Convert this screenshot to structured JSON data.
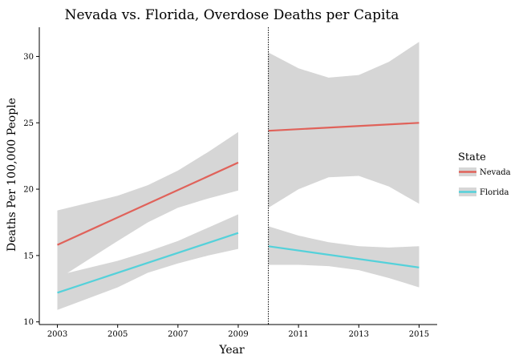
{
  "chart_data": {
    "type": "line",
    "title": "Nevada vs. Florida, Overdose Deaths per Capita",
    "xlabel": "Year",
    "ylabel": "Deaths Per 100,000 People",
    "xlim": [
      2002.4,
      2015.6
    ],
    "ylim": [
      9.8,
      32.2
    ],
    "x_ticks": [
      2003,
      2005,
      2007,
      2009,
      2011,
      2013,
      2015
    ],
    "y_ticks": [
      10,
      15,
      20,
      25,
      30
    ],
    "grid": false,
    "cutoff_line": {
      "x": 2010,
      "style": "dotted"
    },
    "legend": {
      "title": "State",
      "placement": "right",
      "entries": [
        {
          "name": "Nevada",
          "color": "#e0625a"
        },
        {
          "name": "Florida",
          "color": "#54d1da"
        }
      ]
    },
    "band_color": "#d6d6d6",
    "series": [
      {
        "name": "Nevada",
        "color": "#e0625a",
        "segment": "pre",
        "line": [
          [
            2003,
            15.8
          ],
          [
            2009,
            22.0
          ]
        ],
        "band": [
          [
            2003,
            13.2,
            18.4
          ],
          [
            2005,
            16.1,
            19.5
          ],
          [
            2006,
            17.5,
            20.3
          ],
          [
            2007,
            18.6,
            21.4
          ],
          [
            2008,
            19.3,
            22.8
          ],
          [
            2009,
            19.9,
            24.3
          ]
        ]
      },
      {
        "name": "Florida",
        "color": "#54d1da",
        "segment": "pre",
        "line": [
          [
            2003,
            12.2
          ],
          [
            2009,
            16.7
          ]
        ],
        "band": [
          [
            2003,
            10.9,
            13.5
          ],
          [
            2005,
            12.6,
            14.6
          ],
          [
            2006,
            13.7,
            15.3
          ],
          [
            2007,
            14.4,
            16.1
          ],
          [
            2008,
            15.0,
            17.1
          ],
          [
            2009,
            15.5,
            18.1
          ]
        ]
      },
      {
        "name": "Nevada",
        "color": "#e0625a",
        "segment": "post",
        "line": [
          [
            2010,
            24.4
          ],
          [
            2015,
            25.0
          ]
        ],
        "band": [
          [
            2010,
            18.6,
            30.3
          ],
          [
            2011,
            20.0,
            29.1
          ],
          [
            2012,
            20.9,
            28.4
          ],
          [
            2013,
            21.0,
            28.6
          ],
          [
            2014,
            20.2,
            29.6
          ],
          [
            2015,
            18.9,
            31.1
          ]
        ]
      },
      {
        "name": "Florida",
        "color": "#54d1da",
        "segment": "post",
        "line": [
          [
            2010,
            15.7
          ],
          [
            2015,
            14.1
          ]
        ],
        "band": [
          [
            2010,
            14.3,
            17.2
          ],
          [
            2011,
            14.3,
            16.5
          ],
          [
            2012,
            14.2,
            16.0
          ],
          [
            2013,
            13.9,
            15.7
          ],
          [
            2014,
            13.3,
            15.6
          ],
          [
            2015,
            12.6,
            15.7
          ]
        ]
      }
    ]
  }
}
